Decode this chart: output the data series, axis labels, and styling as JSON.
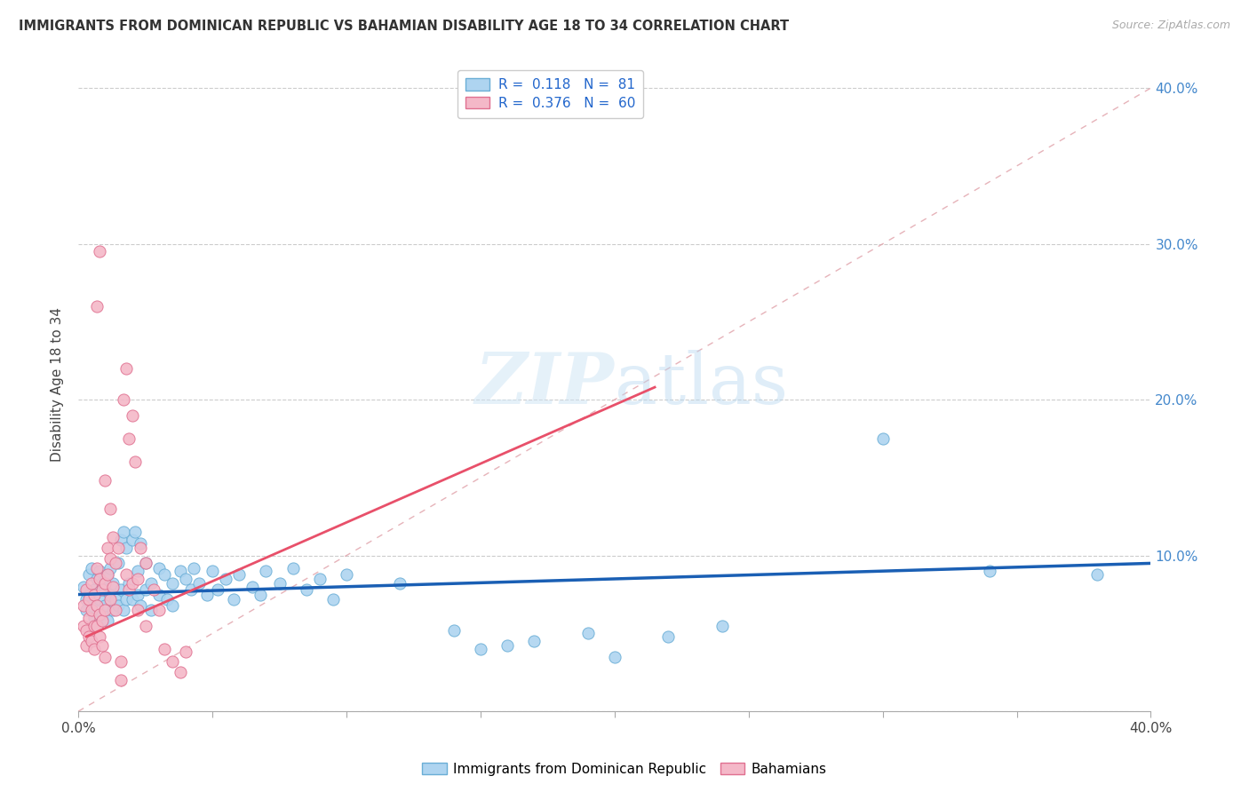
{
  "title": "IMMIGRANTS FROM DOMINICAN REPUBLIC VS BAHAMIAN DISABILITY AGE 18 TO 34 CORRELATION CHART",
  "source": "Source: ZipAtlas.com",
  "ylabel": "Disability Age 18 to 34",
  "x_min": 0.0,
  "x_max": 0.4,
  "y_min": 0.0,
  "y_max": 0.42,
  "blue_color": "#aed4f0",
  "blue_edge_color": "#6aaed6",
  "pink_color": "#f4b8c8",
  "pink_edge_color": "#e07090",
  "blue_line_color": "#1a5fb4",
  "pink_line_color": "#e8506a",
  "diagonal_color": "#e0a0a8",
  "legend_label1": "Immigrants from Dominican Republic",
  "legend_label2": "Bahamians",
  "blue_line_x0": 0.0,
  "blue_line_x1": 0.4,
  "blue_line_y0": 0.075,
  "blue_line_y1": 0.095,
  "pink_line_x0": 0.003,
  "pink_line_x1": 0.215,
  "pink_line_y0": 0.048,
  "pink_line_y1": 0.208,
  "blue_scatter": [
    [
      0.002,
      0.08
    ],
    [
      0.003,
      0.072
    ],
    [
      0.003,
      0.065
    ],
    [
      0.004,
      0.088
    ],
    [
      0.004,
      0.075
    ],
    [
      0.005,
      0.092
    ],
    [
      0.005,
      0.068
    ],
    [
      0.006,
      0.078
    ],
    [
      0.006,
      0.06
    ],
    [
      0.007,
      0.085
    ],
    [
      0.007,
      0.055
    ],
    [
      0.008,
      0.09
    ],
    [
      0.008,
      0.072
    ],
    [
      0.009,
      0.082
    ],
    [
      0.009,
      0.062
    ],
    [
      0.01,
      0.078
    ],
    [
      0.01,
      0.068
    ],
    [
      0.011,
      0.088
    ],
    [
      0.011,
      0.058
    ],
    [
      0.012,
      0.075
    ],
    [
      0.012,
      0.092
    ],
    [
      0.013,
      0.065
    ],
    [
      0.013,
      0.082
    ],
    [
      0.014,
      0.072
    ],
    [
      0.015,
      0.095
    ],
    [
      0.015,
      0.068
    ],
    [
      0.016,
      0.11
    ],
    [
      0.016,
      0.078
    ],
    [
      0.017,
      0.115
    ],
    [
      0.017,
      0.065
    ],
    [
      0.018,
      0.105
    ],
    [
      0.018,
      0.072
    ],
    [
      0.019,
      0.082
    ],
    [
      0.02,
      0.11
    ],
    [
      0.02,
      0.072
    ],
    [
      0.021,
      0.115
    ],
    [
      0.022,
      0.09
    ],
    [
      0.022,
      0.075
    ],
    [
      0.023,
      0.108
    ],
    [
      0.023,
      0.068
    ],
    [
      0.025,
      0.095
    ],
    [
      0.025,
      0.078
    ],
    [
      0.027,
      0.082
    ],
    [
      0.027,
      0.065
    ],
    [
      0.03,
      0.092
    ],
    [
      0.03,
      0.075
    ],
    [
      0.032,
      0.088
    ],
    [
      0.033,
      0.072
    ],
    [
      0.035,
      0.082
    ],
    [
      0.035,
      0.068
    ],
    [
      0.038,
      0.09
    ],
    [
      0.04,
      0.085
    ],
    [
      0.042,
      0.078
    ],
    [
      0.043,
      0.092
    ],
    [
      0.045,
      0.082
    ],
    [
      0.048,
      0.075
    ],
    [
      0.05,
      0.09
    ],
    [
      0.052,
      0.078
    ],
    [
      0.055,
      0.085
    ],
    [
      0.058,
      0.072
    ],
    [
      0.06,
      0.088
    ],
    [
      0.065,
      0.08
    ],
    [
      0.068,
      0.075
    ],
    [
      0.07,
      0.09
    ],
    [
      0.075,
      0.082
    ],
    [
      0.08,
      0.092
    ],
    [
      0.085,
      0.078
    ],
    [
      0.09,
      0.085
    ],
    [
      0.095,
      0.072
    ],
    [
      0.1,
      0.088
    ],
    [
      0.12,
      0.082
    ],
    [
      0.14,
      0.052
    ],
    [
      0.15,
      0.04
    ],
    [
      0.16,
      0.042
    ],
    [
      0.17,
      0.045
    ],
    [
      0.19,
      0.05
    ],
    [
      0.2,
      0.035
    ],
    [
      0.22,
      0.048
    ],
    [
      0.24,
      0.055
    ],
    [
      0.3,
      0.175
    ],
    [
      0.34,
      0.09
    ],
    [
      0.38,
      0.088
    ]
  ],
  "pink_scatter": [
    [
      0.002,
      0.068
    ],
    [
      0.002,
      0.055
    ],
    [
      0.003,
      0.078
    ],
    [
      0.003,
      0.052
    ],
    [
      0.003,
      0.042
    ],
    [
      0.004,
      0.072
    ],
    [
      0.004,
      0.06
    ],
    [
      0.004,
      0.048
    ],
    [
      0.005,
      0.082
    ],
    [
      0.005,
      0.065
    ],
    [
      0.005,
      0.045
    ],
    [
      0.006,
      0.075
    ],
    [
      0.006,
      0.055
    ],
    [
      0.006,
      0.04
    ],
    [
      0.007,
      0.092
    ],
    [
      0.007,
      0.068
    ],
    [
      0.007,
      0.055
    ],
    [
      0.008,
      0.085
    ],
    [
      0.008,
      0.062
    ],
    [
      0.008,
      0.048
    ],
    [
      0.009,
      0.078
    ],
    [
      0.009,
      0.058
    ],
    [
      0.009,
      0.042
    ],
    [
      0.01,
      0.082
    ],
    [
      0.01,
      0.065
    ],
    [
      0.01,
      0.035
    ],
    [
      0.011,
      0.105
    ],
    [
      0.011,
      0.088
    ],
    [
      0.012,
      0.098
    ],
    [
      0.012,
      0.072
    ],
    [
      0.013,
      0.112
    ],
    [
      0.013,
      0.08
    ],
    [
      0.014,
      0.095
    ],
    [
      0.014,
      0.065
    ],
    [
      0.015,
      0.105
    ],
    [
      0.016,
      0.032
    ],
    [
      0.016,
      0.02
    ],
    [
      0.017,
      0.2
    ],
    [
      0.018,
      0.22
    ],
    [
      0.018,
      0.088
    ],
    [
      0.019,
      0.175
    ],
    [
      0.019,
      0.078
    ],
    [
      0.02,
      0.19
    ],
    [
      0.02,
      0.082
    ],
    [
      0.021,
      0.16
    ],
    [
      0.022,
      0.085
    ],
    [
      0.022,
      0.065
    ],
    [
      0.023,
      0.105
    ],
    [
      0.025,
      0.095
    ],
    [
      0.025,
      0.055
    ],
    [
      0.028,
      0.078
    ],
    [
      0.03,
      0.065
    ],
    [
      0.032,
      0.04
    ],
    [
      0.035,
      0.032
    ],
    [
      0.038,
      0.025
    ],
    [
      0.04,
      0.038
    ],
    [
      0.01,
      0.148
    ],
    [
      0.012,
      0.13
    ],
    [
      0.007,
      0.26
    ],
    [
      0.008,
      0.295
    ]
  ]
}
